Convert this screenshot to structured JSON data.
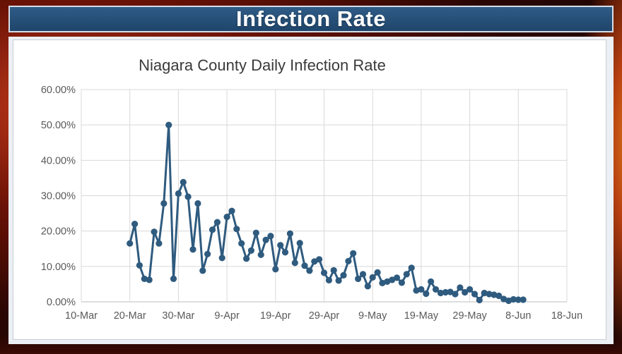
{
  "header": {
    "title": "Infection Rate"
  },
  "chart_data": {
    "type": "line",
    "title": "Niagara County Daily Infection Rate",
    "xlabel": "",
    "ylabel": "",
    "x_tick_labels": [
      "10-Mar",
      "20-Mar",
      "30-Mar",
      "9-Apr",
      "19-Apr",
      "29-Apr",
      "9-May",
      "19-May",
      "29-May",
      "8-Jun",
      "18-Jun"
    ],
    "y_tick_labels": [
      "0.00%",
      "10.00%",
      "20.00%",
      "30.00%",
      "40.00%",
      "50.00%",
      "60.00%"
    ],
    "xlim": [
      "2020-03-10",
      "2020-06-18"
    ],
    "ylim": [
      0,
      0.6
    ],
    "grid": true,
    "legend": false,
    "line_color": "#2f5b7f",
    "series": [
      {
        "x": [
          "2020-03-20",
          "2020-03-21",
          "2020-03-22",
          "2020-03-23",
          "2020-03-24",
          "2020-03-25",
          "2020-03-26",
          "2020-03-27",
          "2020-03-28",
          "2020-03-29",
          "2020-03-30",
          "2020-03-31",
          "2020-04-01",
          "2020-04-02",
          "2020-04-03",
          "2020-04-04",
          "2020-04-05",
          "2020-04-06",
          "2020-04-07",
          "2020-04-08",
          "2020-04-09",
          "2020-04-10",
          "2020-04-11",
          "2020-04-12",
          "2020-04-13",
          "2020-04-14",
          "2020-04-15",
          "2020-04-16",
          "2020-04-17",
          "2020-04-18",
          "2020-04-19",
          "2020-04-20",
          "2020-04-21",
          "2020-04-22",
          "2020-04-23",
          "2020-04-24",
          "2020-04-25",
          "2020-04-26",
          "2020-04-27",
          "2020-04-28",
          "2020-04-29",
          "2020-04-30",
          "2020-05-01",
          "2020-05-02",
          "2020-05-03",
          "2020-05-04",
          "2020-05-05",
          "2020-05-06",
          "2020-05-07",
          "2020-05-08",
          "2020-05-09",
          "2020-05-10",
          "2020-05-11",
          "2020-05-12",
          "2020-05-13",
          "2020-05-14",
          "2020-05-15",
          "2020-05-16",
          "2020-05-17",
          "2020-05-18",
          "2020-05-19",
          "2020-05-20",
          "2020-05-21",
          "2020-05-22",
          "2020-05-23",
          "2020-05-24",
          "2020-05-25",
          "2020-05-26",
          "2020-05-27",
          "2020-05-28",
          "2020-05-29",
          "2020-05-30",
          "2020-05-31",
          "2020-06-01",
          "2020-06-02",
          "2020-06-03",
          "2020-06-04",
          "2020-06-05",
          "2020-06-06",
          "2020-06-07",
          "2020-06-08",
          "2020-06-09"
        ],
        "y": [
          0.165,
          0.22,
          0.103,
          0.065,
          0.062,
          0.198,
          0.165,
          0.278,
          0.5,
          0.065,
          0.306,
          0.338,
          0.297,
          0.148,
          0.278,
          0.088,
          0.135,
          0.204,
          0.225,
          0.124,
          0.24,
          0.257,
          0.206,
          0.165,
          0.122,
          0.145,
          0.195,
          0.133,
          0.175,
          0.186,
          0.092,
          0.16,
          0.14,
          0.193,
          0.11,
          0.166,
          0.102,
          0.088,
          0.114,
          0.12,
          0.082,
          0.061,
          0.089,
          0.06,
          0.075,
          0.115,
          0.137,
          0.065,
          0.078,
          0.044,
          0.069,
          0.083,
          0.053,
          0.057,
          0.062,
          0.068,
          0.054,
          0.078,
          0.096,
          0.032,
          0.035,
          0.023,
          0.057,
          0.035,
          0.025,
          0.027,
          0.028,
          0.022,
          0.04,
          0.027,
          0.035,
          0.022,
          0.005,
          0.025,
          0.022,
          0.02,
          0.017,
          0.008,
          0.003,
          0.007,
          0.006,
          0.006
        ]
      }
    ]
  }
}
